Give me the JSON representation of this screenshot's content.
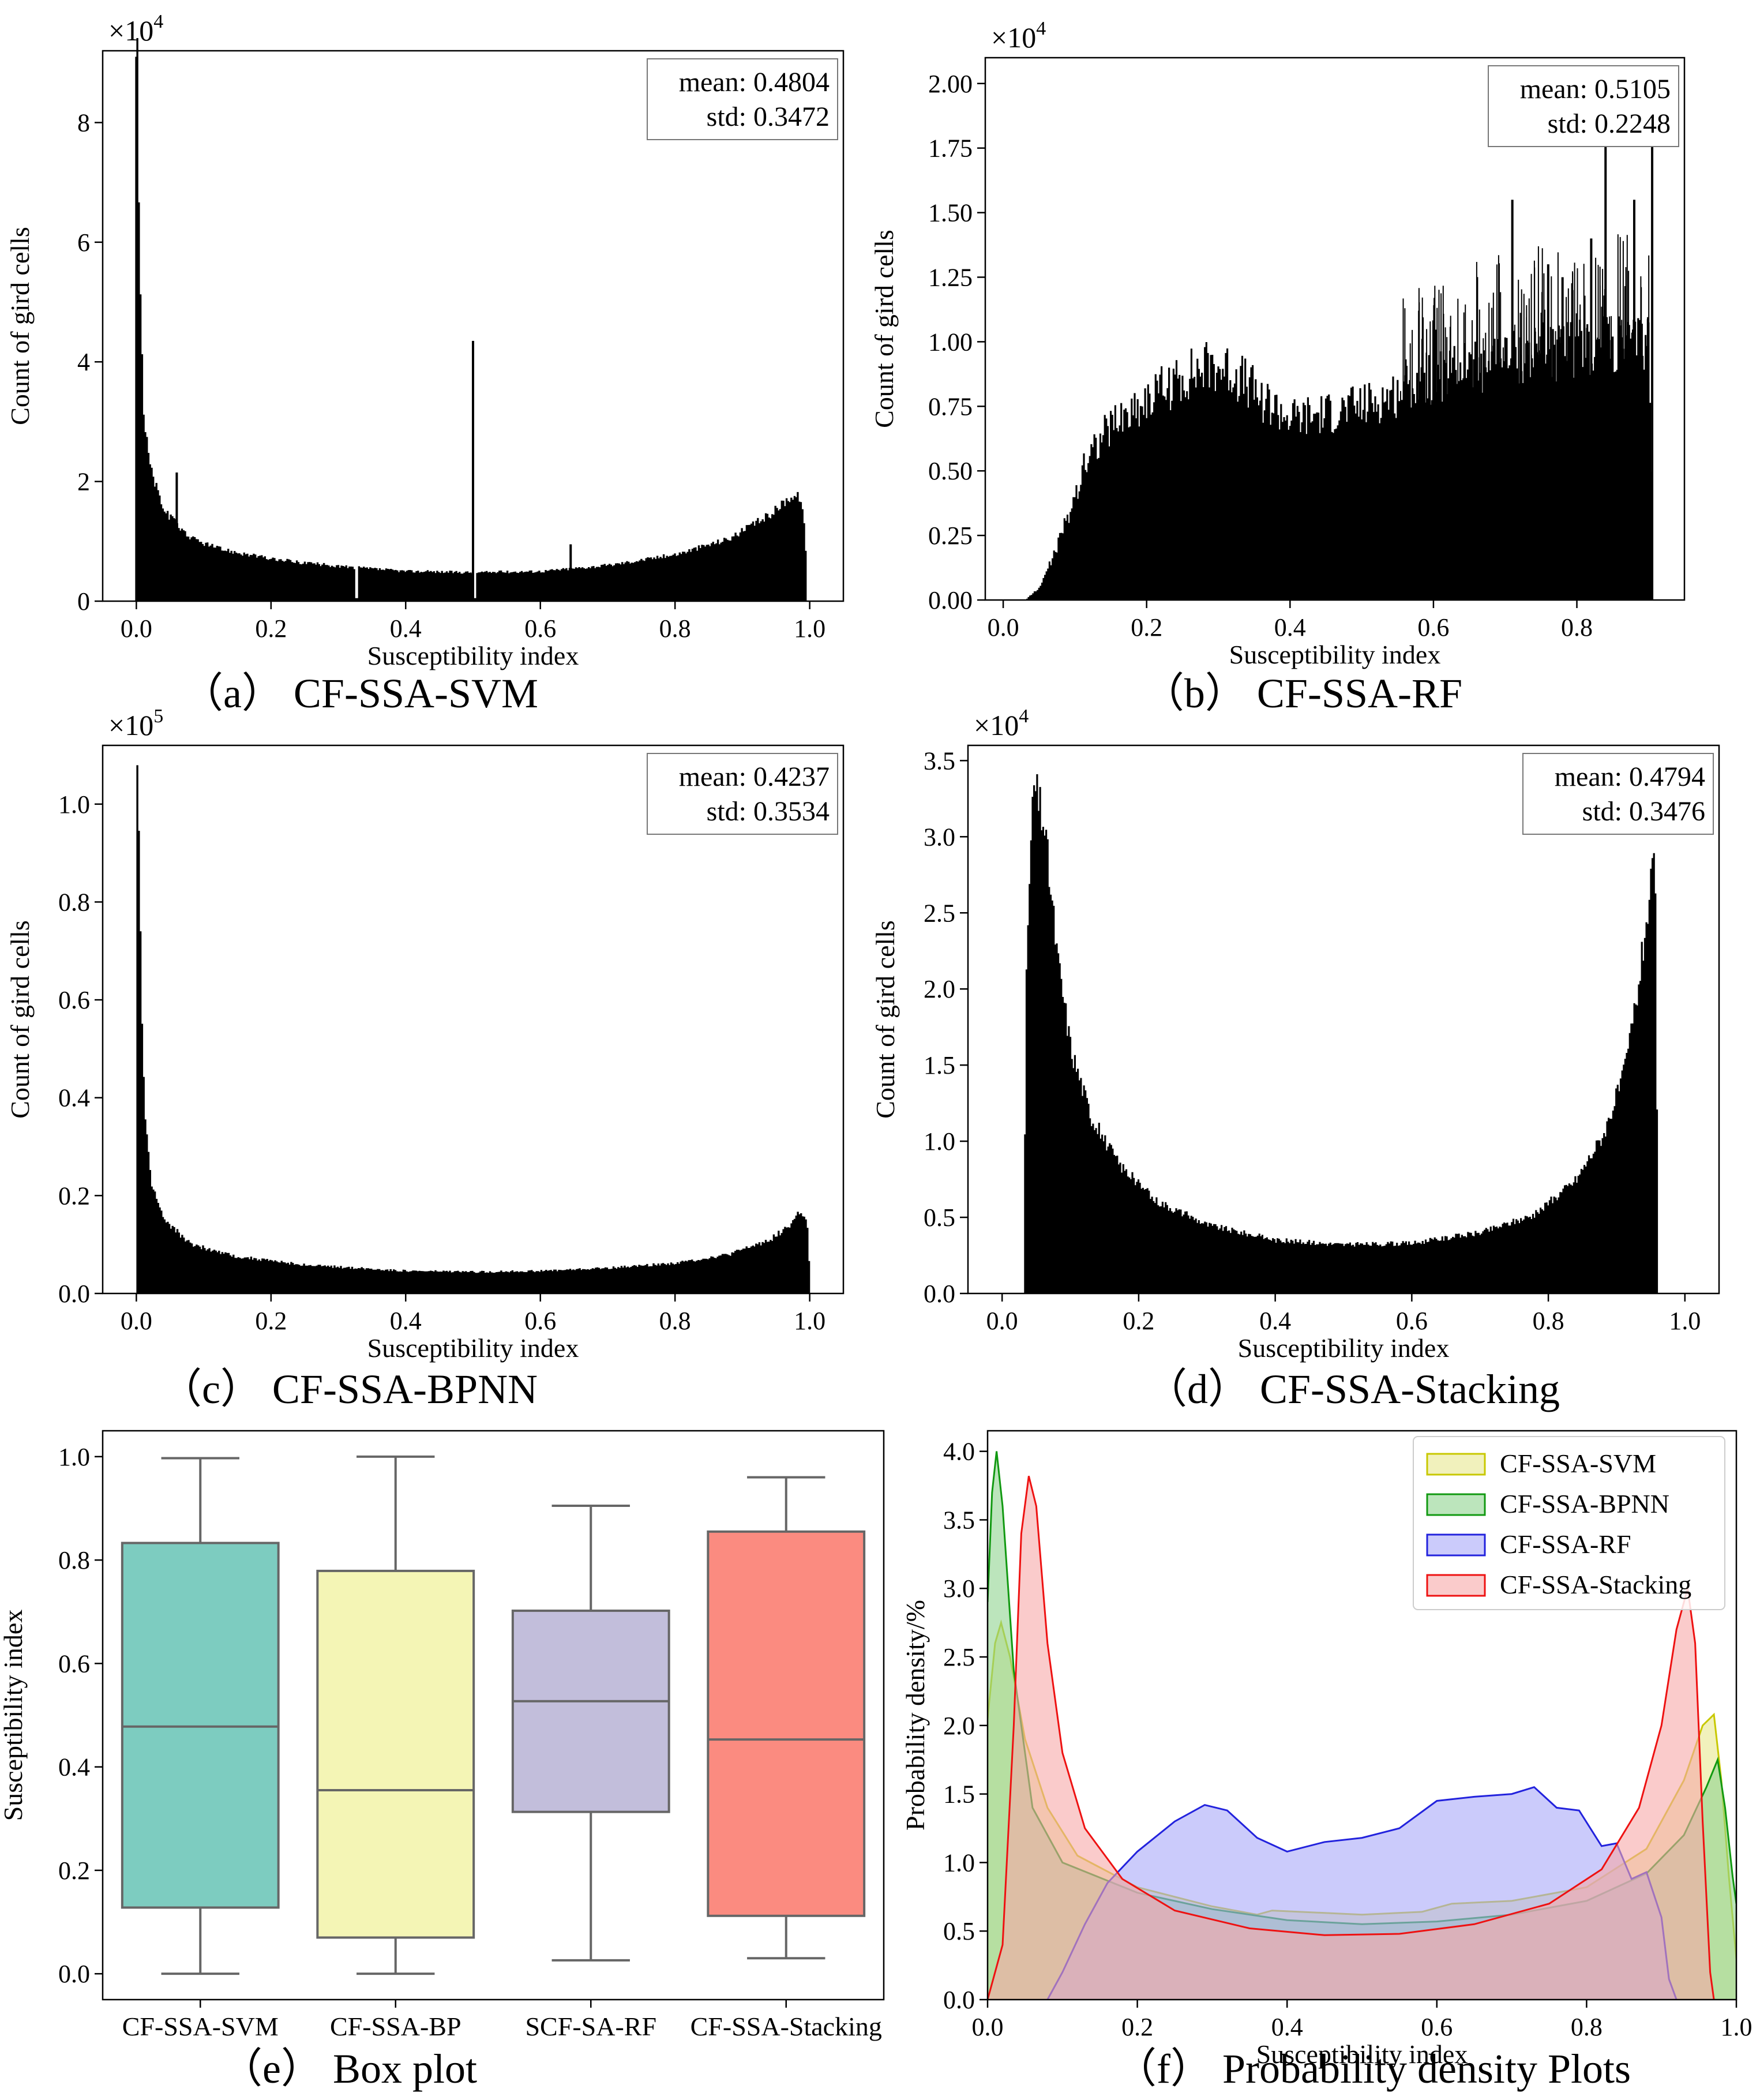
{
  "figure": {
    "panels": [
      {
        "id": "a",
        "caption": "（a） CF-SSA-SVM"
      },
      {
        "id": "b",
        "caption": "（b） CF-SSA-RF"
      },
      {
        "id": "c",
        "caption": "（c） CF-SSA-BPNN"
      },
      {
        "id": "d",
        "caption": "（d） CF-SSA-Stacking"
      },
      {
        "id": "e",
        "caption": "（e） Box plot"
      },
      {
        "id": "f",
        "caption": "（f） Probability density Plots"
      }
    ]
  },
  "chart_data": [
    {
      "id": "a",
      "type": "bar",
      "title": "CF-SSA-SVM",
      "xlabel": "Susceptibility index",
      "ylabel": "Count of gird cells",
      "y_scale_label": "×10",
      "y_scale_exp": "4",
      "xlim": [
        -0.05,
        1.05
      ],
      "ylim": [
        0,
        9.2
      ],
      "xticks": [
        "0.0",
        "0.2",
        "0.4",
        "0.6",
        "0.8",
        "1.0"
      ],
      "yticks": [
        "0",
        "2",
        "4",
        "6",
        "8"
      ],
      "stats": {
        "mean": "mean: 0.4804",
        "std": "std: 0.3472"
      },
      "profile": [
        [
          0.0,
          9.0
        ],
        [
          0.004,
          5.5
        ],
        [
          0.01,
          3.0
        ],
        [
          0.02,
          2.2
        ],
        [
          0.04,
          1.5
        ],
        [
          0.08,
          1.05
        ],
        [
          0.12,
          0.88
        ],
        [
          0.2,
          0.7
        ],
        [
          0.3,
          0.58
        ],
        [
          0.4,
          0.5
        ],
        [
          0.5,
          0.48
        ],
        [
          0.6,
          0.5
        ],
        [
          0.7,
          0.6
        ],
        [
          0.8,
          0.78
        ],
        [
          0.88,
          1.05
        ],
        [
          0.94,
          1.45
        ],
        [
          0.97,
          1.75
        ],
        [
          0.985,
          1.75
        ],
        [
          0.992,
          1.1
        ],
        [
          0.995,
          0
        ]
      ],
      "spikes": [
        [
          0.0,
          9.1
        ],
        [
          0.06,
          2.15
        ],
        [
          0.5,
          4.35
        ],
        [
          0.645,
          0.95
        ]
      ],
      "dips": [
        [
          0.325,
          0.05
        ],
        [
          0.5,
          0.05
        ]
      ]
    },
    {
      "id": "b",
      "type": "bar",
      "title": "CF-SSA-RF",
      "xlabel": "Susceptibility index",
      "ylabel": "Count of gird cells",
      "y_scale_label": "×10",
      "y_scale_exp": "4",
      "xlim": [
        -0.025,
        0.95
      ],
      "ylim": [
        0,
        2.1
      ],
      "xticks": [
        "0.0",
        "0.2",
        "0.4",
        "0.6",
        "0.8"
      ],
      "yticks": [
        "0.00",
        "0.25",
        "0.50",
        "0.75",
        "1.00",
        "1.25",
        "1.50",
        "1.75",
        "2.00"
      ],
      "stats": {
        "mean": "mean: 0.5105",
        "std": "std: 0.2248"
      },
      "profile": [
        [
          0.03,
          0.0
        ],
        [
          0.05,
          0.05
        ],
        [
          0.07,
          0.18
        ],
        [
          0.09,
          0.33
        ],
        [
          0.11,
          0.5
        ],
        [
          0.12,
          0.58
        ],
        [
          0.15,
          0.68
        ],
        [
          0.2,
          0.78
        ],
        [
          0.25,
          0.86
        ],
        [
          0.29,
          0.91
        ],
        [
          0.32,
          0.88
        ],
        [
          0.36,
          0.78
        ],
        [
          0.4,
          0.7
        ],
        [
          0.45,
          0.72
        ],
        [
          0.5,
          0.75
        ],
        [
          0.55,
          0.8
        ],
        [
          0.6,
          0.86
        ],
        [
          0.65,
          0.9
        ],
        [
          0.7,
          0.93
        ],
        [
          0.75,
          0.95
        ],
        [
          0.8,
          0.97
        ],
        [
          0.85,
          0.98
        ],
        [
          0.9,
          0.99
        ],
        [
          0.905,
          0
        ]
      ],
      "spikes": [
        [
          0.71,
          1.55
        ],
        [
          0.78,
          1.25
        ],
        [
          0.84,
          1.85
        ],
        [
          0.88,
          1.55
        ],
        [
          0.905,
          2.0
        ],
        [
          0.76,
          1.3
        ],
        [
          0.82,
          1.4
        ]
      ]
    },
    {
      "id": "c",
      "type": "bar",
      "title": "CF-SSA-BPNN",
      "xlabel": "Susceptibility index",
      "ylabel": "Count of gird cells",
      "y_scale_label": "×10",
      "y_scale_exp": "5",
      "xlim": [
        -0.05,
        1.05
      ],
      "ylim": [
        0,
        1.12
      ],
      "xticks": [
        "0.0",
        "0.2",
        "0.4",
        "0.6",
        "0.8",
        "1.0"
      ],
      "yticks": [
        "0.0",
        "0.2",
        "0.4",
        "0.6",
        "0.8",
        "1.0"
      ],
      "stats": {
        "mean": "mean: 0.4237",
        "std": "std: 0.3534"
      },
      "profile": [
        [
          0.0,
          1.1
        ],
        [
          0.003,
          0.9
        ],
        [
          0.007,
          0.55
        ],
        [
          0.012,
          0.35
        ],
        [
          0.02,
          0.23
        ],
        [
          0.04,
          0.15
        ],
        [
          0.08,
          0.1
        ],
        [
          0.15,
          0.075
        ],
        [
          0.25,
          0.058
        ],
        [
          0.4,
          0.046
        ],
        [
          0.5,
          0.044
        ],
        [
          0.6,
          0.046
        ],
        [
          0.7,
          0.052
        ],
        [
          0.8,
          0.062
        ],
        [
          0.88,
          0.08
        ],
        [
          0.94,
          0.11
        ],
        [
          0.97,
          0.14
        ],
        [
          0.985,
          0.17
        ],
        [
          0.995,
          0.14
        ],
        [
          1.0,
          0
        ]
      ]
    },
    {
      "id": "d",
      "type": "bar",
      "title": "CF-SSA-Stacking",
      "xlabel": "Susceptibility index",
      "ylabel": "Count of gird cells",
      "y_scale_label": "×10",
      "y_scale_exp": "4",
      "xlim": [
        -0.05,
        1.05
      ],
      "ylim": [
        0,
        3.6
      ],
      "xticks": [
        "0.0",
        "0.2",
        "0.4",
        "0.6",
        "0.8",
        "1.0"
      ],
      "yticks": [
        "0.0",
        "0.5",
        "1.0",
        "1.5",
        "2.0",
        "2.5",
        "3.0",
        "3.5"
      ],
      "stats": {
        "mean": "mean: 0.4794",
        "std": "std: 0.3476"
      },
      "profile": [
        [
          0.03,
          0
        ],
        [
          0.035,
          2.3
        ],
        [
          0.045,
          3.35
        ],
        [
          0.06,
          3.1
        ],
        [
          0.08,
          2.2
        ],
        [
          0.1,
          1.6
        ],
        [
          0.13,
          1.15
        ],
        [
          0.17,
          0.85
        ],
        [
          0.22,
          0.62
        ],
        [
          0.3,
          0.45
        ],
        [
          0.4,
          0.35
        ],
        [
          0.5,
          0.32
        ],
        [
          0.6,
          0.33
        ],
        [
          0.7,
          0.4
        ],
        [
          0.78,
          0.52
        ],
        [
          0.84,
          0.75
        ],
        [
          0.88,
          1.05
        ],
        [
          0.91,
          1.45
        ],
        [
          0.93,
          2.0
        ],
        [
          0.945,
          2.55
        ],
        [
          0.955,
          2.85
        ],
        [
          0.96,
          0
        ]
      ]
    },
    {
      "id": "e",
      "type": "box",
      "title": "Box plot",
      "xlabel": "",
      "ylabel": "Susceptibility index",
      "ylim": [
        -0.05,
        1.05
      ],
      "yticks": [
        "0.0",
        "0.2",
        "0.4",
        "0.6",
        "0.8",
        "1.0"
      ],
      "categories": [
        "CF-SSA-SVM",
        "CF-SSA-BP",
        "SCF-SA-RF",
        "CF-SSA-Stacking"
      ],
      "boxes": [
        {
          "min": 0.0,
          "q1": 0.128,
          "median": 0.478,
          "q3": 0.833,
          "max": 0.997,
          "color": "#7dccc0"
        },
        {
          "min": 0.0,
          "q1": 0.07,
          "median": 0.355,
          "q3": 0.779,
          "max": 1.0,
          "color": "#f4f5b5"
        },
        {
          "min": 0.026,
          "q1": 0.313,
          "median": 0.527,
          "q3": 0.702,
          "max": 0.905,
          "color": "#c2bedb"
        },
        {
          "min": 0.03,
          "q1": 0.112,
          "median": 0.453,
          "q3": 0.855,
          "max": 0.96,
          "color": "#fb8b80"
        }
      ]
    },
    {
      "id": "f",
      "type": "area",
      "title": "Probability density Plots",
      "xlabel": "Susceptibility index",
      "ylabel": "Probability density/%",
      "xlim": [
        0.0,
        1.0
      ],
      "ylim": [
        0.0,
        4.15
      ],
      "xticks": [
        "0.0",
        "0.2",
        "0.4",
        "0.6",
        "0.8",
        "1.0"
      ],
      "yticks": [
        "0.0",
        "0.5",
        "1.0",
        "1.5",
        "2.0",
        "2.5",
        "3.0",
        "3.5",
        "4.0"
      ],
      "legend_position": "top-right",
      "series": [
        {
          "name": "CF-SSA-SVM",
          "stroke": "#c8c800",
          "fill": "#e8e890",
          "points": [
            [
              0.0,
              2.05
            ],
            [
              0.01,
              2.6
            ],
            [
              0.018,
              2.75
            ],
            [
              0.03,
              2.5
            ],
            [
              0.05,
              1.9
            ],
            [
              0.08,
              1.4
            ],
            [
              0.12,
              1.05
            ],
            [
              0.2,
              0.82
            ],
            [
              0.3,
              0.68
            ],
            [
              0.36,
              0.62
            ],
            [
              0.38,
              0.65
            ],
            [
              0.5,
              0.62
            ],
            [
              0.58,
              0.64
            ],
            [
              0.62,
              0.7
            ],
            [
              0.7,
              0.72
            ],
            [
              0.8,
              0.82
            ],
            [
              0.88,
              1.1
            ],
            [
              0.93,
              1.6
            ],
            [
              0.955,
              2.0
            ],
            [
              0.97,
              2.08
            ],
            [
              0.98,
              1.6
            ],
            [
              0.99,
              0.9
            ],
            [
              1.0,
              0.3
            ]
          ]
        },
        {
          "name": "CF-SSA-BPNN",
          "stroke": "#119911",
          "fill": "#8fd48f",
          "points": [
            [
              0.0,
              2.9
            ],
            [
              0.006,
              3.7
            ],
            [
              0.012,
              4.0
            ],
            [
              0.02,
              3.6
            ],
            [
              0.035,
              2.4
            ],
            [
              0.06,
              1.4
            ],
            [
              0.1,
              1.0
            ],
            [
              0.2,
              0.78
            ],
            [
              0.3,
              0.66
            ],
            [
              0.4,
              0.58
            ],
            [
              0.5,
              0.55
            ],
            [
              0.6,
              0.57
            ],
            [
              0.7,
              0.62
            ],
            [
              0.8,
              0.72
            ],
            [
              0.88,
              0.92
            ],
            [
              0.93,
              1.2
            ],
            [
              0.96,
              1.55
            ],
            [
              0.975,
              1.75
            ],
            [
              0.985,
              1.4
            ],
            [
              0.995,
              0.9
            ],
            [
              1.0,
              0.7
            ]
          ]
        },
        {
          "name": "CF-SSA-RF",
          "stroke": "#2222dd",
          "fill": "#a8a8f8",
          "points": [
            [
              0.08,
              0.0
            ],
            [
              0.1,
              0.2
            ],
            [
              0.13,
              0.55
            ],
            [
              0.16,
              0.85
            ],
            [
              0.2,
              1.08
            ],
            [
              0.25,
              1.3
            ],
            [
              0.29,
              1.42
            ],
            [
              0.32,
              1.38
            ],
            [
              0.36,
              1.18
            ],
            [
              0.4,
              1.08
            ],
            [
              0.45,
              1.15
            ],
            [
              0.5,
              1.18
            ],
            [
              0.55,
              1.25
            ],
            [
              0.6,
              1.45
            ],
            [
              0.65,
              1.48
            ],
            [
              0.7,
              1.5
            ],
            [
              0.73,
              1.55
            ],
            [
              0.76,
              1.4
            ],
            [
              0.79,
              1.38
            ],
            [
              0.82,
              1.12
            ],
            [
              0.84,
              1.14
            ],
            [
              0.86,
              0.88
            ],
            [
              0.88,
              0.93
            ],
            [
              0.9,
              0.6
            ],
            [
              0.91,
              0.15
            ],
            [
              0.92,
              0.0
            ]
          ]
        },
        {
          "name": "CF-SSA-Stacking",
          "stroke": "#ee1111",
          "fill": "#f7a8a8",
          "points": [
            [
              0.0,
              0.0
            ],
            [
              0.02,
              0.4
            ],
            [
              0.035,
              2.0
            ],
            [
              0.045,
              3.4
            ],
            [
              0.055,
              3.82
            ],
            [
              0.065,
              3.6
            ],
            [
              0.08,
              2.6
            ],
            [
              0.1,
              1.8
            ],
            [
              0.13,
              1.25
            ],
            [
              0.18,
              0.88
            ],
            [
              0.25,
              0.65
            ],
            [
              0.35,
              0.52
            ],
            [
              0.45,
              0.47
            ],
            [
              0.55,
              0.48
            ],
            [
              0.65,
              0.55
            ],
            [
              0.75,
              0.7
            ],
            [
              0.82,
              0.95
            ],
            [
              0.87,
              1.4
            ],
            [
              0.9,
              2.0
            ],
            [
              0.92,
              2.7
            ],
            [
              0.935,
              3.0
            ],
            [
              0.945,
              2.6
            ],
            [
              0.955,
              1.3
            ],
            [
              0.965,
              0.2
            ],
            [
              0.97,
              0.0
            ]
          ]
        }
      ]
    }
  ]
}
